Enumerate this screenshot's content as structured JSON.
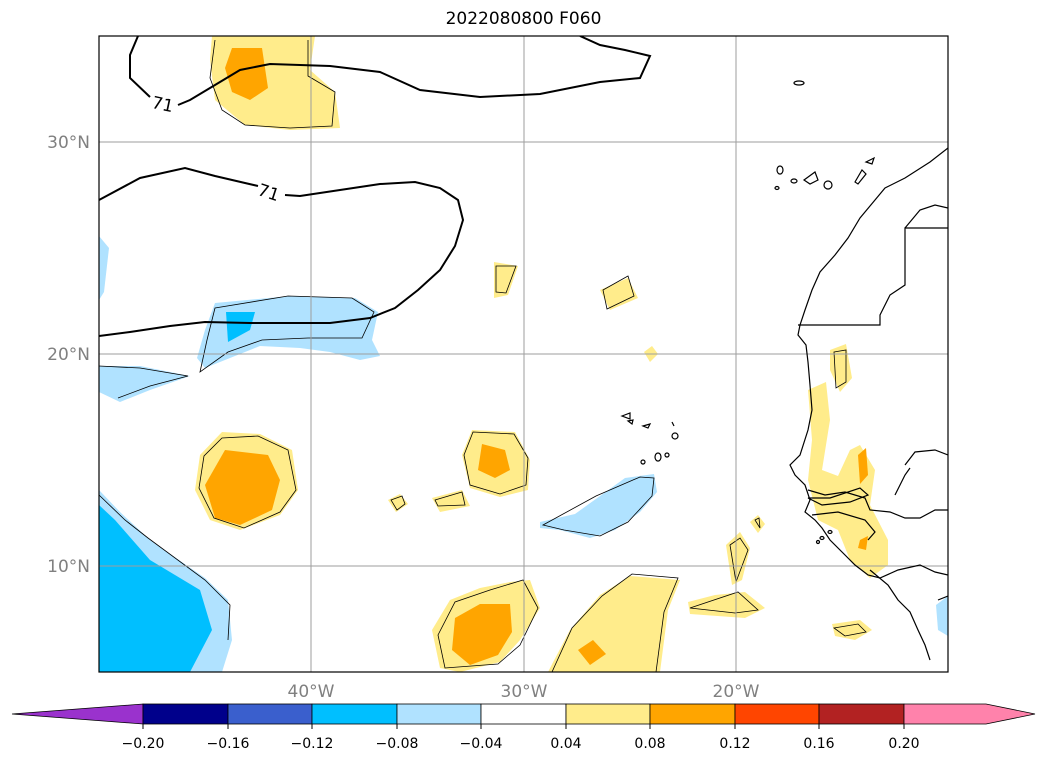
{
  "map": {
    "title": "2022080800 F060",
    "contour_label": "71",
    "lat_labels": [
      "30°N",
      "20°N",
      "10°N"
    ],
    "lon_labels": [
      "40°W",
      "30°W",
      "20°W"
    ]
  },
  "colorbar": {
    "tick_labels": [
      "−0.20",
      "−0.16",
      "−0.12",
      "−0.08",
      "−0.04",
      "0.04",
      "0.08",
      "0.12",
      "0.16",
      "0.20"
    ],
    "colors": [
      "#9a32cd",
      "#00008b",
      "#3a5fcd",
      "#00bfff",
      "#b0e2ff",
      "#ffffff",
      "#ffec8b",
      "#ffa500",
      "#ff4500",
      "#b22222",
      "#ff82ab"
    ]
  }
}
